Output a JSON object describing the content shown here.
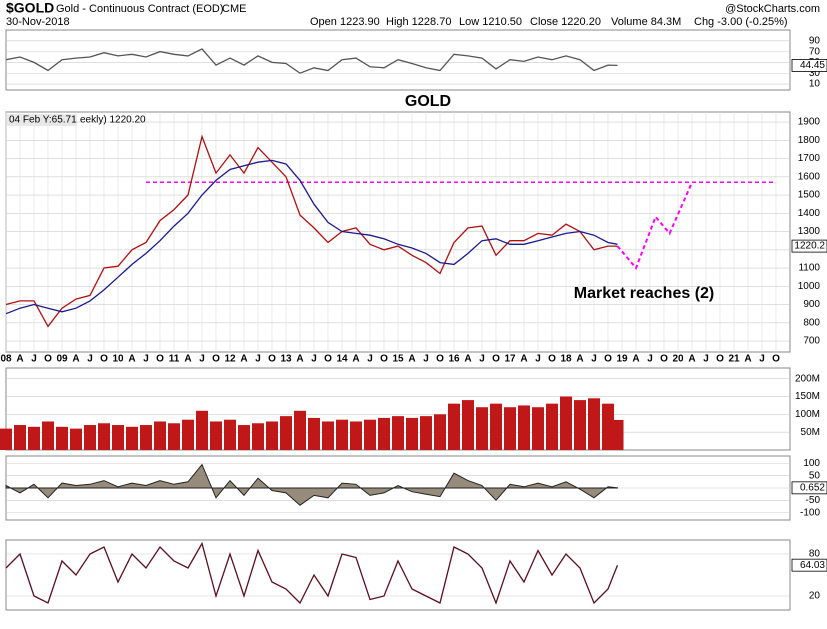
{
  "header": {
    "symbol": "$GOLD",
    "name": "Gold - Continuous Contract (EOD)",
    "exchange": "CME",
    "date": "30-Nov-2018",
    "open": "Open 1223.90",
    "high": "High 1228.70",
    "low": "Low 1210.50",
    "close": "Close 1220.20",
    "volume": "Volume 84.3M",
    "change": "Chg -3.00 (-0.25%)",
    "brand": "@StockCharts.com"
  },
  "chart_data": [
    {
      "type": "line",
      "ylim": [
        -1,
        110
      ],
      "yticks": [
        90,
        70,
        50,
        30,
        10
      ],
      "last_label": {
        "value": 44.45,
        "label": "44.45"
      },
      "x": [
        2008,
        2008.25,
        2008.5,
        2008.75,
        2009,
        2009.25,
        2009.5,
        2009.75,
        2010,
        2010.25,
        2010.5,
        2010.75,
        2011,
        2011.25,
        2011.5,
        2011.75,
        2012,
        2012.25,
        2012.5,
        2012.75,
        2013,
        2013.25,
        2013.5,
        2013.75,
        2014,
        2014.25,
        2014.5,
        2014.75,
        2015,
        2015.25,
        2015.5,
        2015.75,
        2016,
        2016.25,
        2016.5,
        2016.75,
        2017,
        2017.25,
        2017.5,
        2017.75,
        2018,
        2018.25,
        2018.5,
        2018.75,
        2018.92
      ],
      "series": [
        {
          "color": "#555555",
          "values": [
            55,
            60,
            50,
            35,
            55,
            58,
            60,
            68,
            62,
            65,
            60,
            70,
            65,
            62,
            75,
            45,
            58,
            45,
            62,
            50,
            48,
            30,
            40,
            35,
            55,
            58,
            42,
            40,
            55,
            48,
            40,
            35,
            65,
            62,
            58,
            38,
            55,
            52,
            60,
            55,
            62,
            55,
            35,
            45,
            44.45
          ]
        }
      ]
    },
    {
      "type": "line",
      "title": "GOLD",
      "annotation": "Market reaches (2)",
      "legend_text": [
        "04 Feb Y:65.71",
        "eekly) 1220.20"
      ],
      "ylim": [
        640,
        1955
      ],
      "yticks": [
        700,
        800,
        900,
        1000,
        1100,
        1200,
        1300,
        1400,
        1500,
        1600,
        1700,
        1800,
        1900
      ],
      "last_label": {
        "value": 1220.2,
        "label": "1220.2"
      },
      "grid": true,
      "reference_line": 1570,
      "reference_color": "#ff00ff",
      "projection": {
        "color": "#ff00ff",
        "x": [
          2018.92,
          2019.25,
          2019.6,
          2019.85,
          2020.25
        ],
        "values": [
          1220,
          1100,
          1380,
          1290,
          1570
        ]
      },
      "xlim": [
        2008,
        2022
      ],
      "xticks": [
        {
          "value": 2008,
          "label": "08"
        },
        {
          "value": 2008.25,
          "label": "A"
        },
        {
          "value": 2008.5,
          "label": "J"
        },
        {
          "value": 2008.75,
          "label": "O"
        },
        {
          "value": 2009,
          "label": "09"
        },
        {
          "value": 2009.25,
          "label": "A"
        },
        {
          "value": 2009.5,
          "label": "J"
        },
        {
          "value": 2009.75,
          "label": "O"
        },
        {
          "value": 2010,
          "label": "10"
        },
        {
          "value": 2010.25,
          "label": "A"
        },
        {
          "value": 2010.5,
          "label": "J"
        },
        {
          "value": 2010.75,
          "label": "O"
        },
        {
          "value": 2011,
          "label": "11"
        },
        {
          "value": 2011.25,
          "label": "A"
        },
        {
          "value": 2011.5,
          "label": "J"
        },
        {
          "value": 2011.75,
          "label": "O"
        },
        {
          "value": 2012,
          "label": "12"
        },
        {
          "value": 2012.25,
          "label": "A"
        },
        {
          "value": 2012.5,
          "label": "J"
        },
        {
          "value": 2012.75,
          "label": "O"
        },
        {
          "value": 2013,
          "label": "13"
        },
        {
          "value": 2013.25,
          "label": "A"
        },
        {
          "value": 2013.5,
          "label": "J"
        },
        {
          "value": 2013.75,
          "label": "O"
        },
        {
          "value": 2014,
          "label": "14"
        },
        {
          "value": 2014.25,
          "label": "A"
        },
        {
          "value": 2014.5,
          "label": "J"
        },
        {
          "value": 2014.75,
          "label": "O"
        },
        {
          "value": 2015,
          "label": "15"
        },
        {
          "value": 2015.25,
          "label": "A"
        },
        {
          "value": 2015.5,
          "label": "J"
        },
        {
          "value": 2015.75,
          "label": "O"
        },
        {
          "value": 2016,
          "label": "16"
        },
        {
          "value": 2016.25,
          "label": "A"
        },
        {
          "value": 2016.5,
          "label": "J"
        },
        {
          "value": 2016.75,
          "label": "O"
        },
        {
          "value": 2017,
          "label": "17"
        },
        {
          "value": 2017.25,
          "label": "A"
        },
        {
          "value": 2017.5,
          "label": "J"
        },
        {
          "value": 2017.75,
          "label": "O"
        },
        {
          "value": 2018,
          "label": "18"
        },
        {
          "value": 2018.25,
          "label": "A"
        },
        {
          "value": 2018.5,
          "label": "J"
        },
        {
          "value": 2018.75,
          "label": "O"
        },
        {
          "value": 2019,
          "label": "19"
        },
        {
          "value": 2019.25,
          "label": "A"
        },
        {
          "value": 2019.5,
          "label": "J"
        },
        {
          "value": 2019.75,
          "label": "O"
        },
        {
          "value": 2020,
          "label": "20"
        },
        {
          "value": 2020.25,
          "label": "A"
        },
        {
          "value": 2020.5,
          "label": "J"
        },
        {
          "value": 2020.75,
          "label": "O"
        },
        {
          "value": 2021,
          "label": "21"
        },
        {
          "value": 2021.25,
          "label": "A"
        },
        {
          "value": 2021.5,
          "label": "J"
        },
        {
          "value": 2021.75,
          "label": "O"
        }
      ],
      "x": [
        2008,
        2008.25,
        2008.5,
        2008.75,
        2009,
        2009.25,
        2009.5,
        2009.75,
        2010,
        2010.25,
        2010.5,
        2010.75,
        2011,
        2011.25,
        2011.5,
        2011.75,
        2012,
        2012.25,
        2012.5,
        2012.75,
        2013,
        2013.25,
        2013.5,
        2013.75,
        2014,
        2014.25,
        2014.5,
        2014.75,
        2015,
        2015.25,
        2015.5,
        2015.75,
        2016,
        2016.25,
        2016.5,
        2016.75,
        2017,
        2017.25,
        2017.5,
        2017.75,
        2018,
        2018.25,
        2018.5,
        2018.75,
        2018.92
      ],
      "series": [
        {
          "color": "#b01010",
          "values": [
            900,
            920,
            920,
            780,
            880,
            930,
            950,
            1100,
            1110,
            1200,
            1240,
            1360,
            1420,
            1500,
            1820,
            1620,
            1720,
            1620,
            1760,
            1680,
            1600,
            1390,
            1320,
            1240,
            1300,
            1320,
            1230,
            1200,
            1220,
            1170,
            1130,
            1070,
            1240,
            1320,
            1330,
            1170,
            1250,
            1250,
            1290,
            1280,
            1340,
            1300,
            1200,
            1220,
            1220.2
          ]
        },
        {
          "color": "#1a1a8c",
          "values": [
            850,
            880,
            900,
            880,
            860,
            880,
            920,
            980,
            1050,
            1120,
            1180,
            1250,
            1330,
            1400,
            1500,
            1580,
            1640,
            1660,
            1680,
            1690,
            1670,
            1580,
            1450,
            1350,
            1300,
            1290,
            1280,
            1260,
            1230,
            1210,
            1180,
            1130,
            1120,
            1180,
            1250,
            1260,
            1230,
            1230,
            1250,
            1270,
            1290,
            1300,
            1280,
            1240,
            1230
          ]
        }
      ]
    },
    {
      "type": "bar",
      "ylim": [
        0,
        230000000
      ],
      "yticks": [
        {
          "value": 200000000,
          "label": "200M"
        },
        {
          "value": 150000000,
          "label": "150M"
        },
        {
          "value": 100000000,
          "label": "100M"
        },
        {
          "value": 50000000,
          "label": "50M"
        }
      ],
      "color": "#c01818",
      "x": [
        2008,
        2008.25,
        2008.5,
        2008.75,
        2009,
        2009.25,
        2009.5,
        2009.75,
        2010,
        2010.25,
        2010.5,
        2010.75,
        2011,
        2011.25,
        2011.5,
        2011.75,
        2012,
        2012.25,
        2012.5,
        2012.75,
        2013,
        2013.25,
        2013.5,
        2013.75,
        2014,
        2014.25,
        2014.5,
        2014.75,
        2015,
        2015.25,
        2015.5,
        2015.75,
        2016,
        2016.25,
        2016.5,
        2016.75,
        2017,
        2017.25,
        2017.5,
        2017.75,
        2018,
        2018.25,
        2018.5,
        2018.75,
        2018.92
      ],
      "values": [
        60000000,
        70000000,
        65000000,
        80000000,
        65000000,
        60000000,
        70000000,
        75000000,
        70000000,
        65000000,
        70000000,
        80000000,
        75000000,
        85000000,
        110000000,
        80000000,
        85000000,
        70000000,
        75000000,
        80000000,
        95000000,
        110000000,
        90000000,
        80000000,
        85000000,
        80000000,
        85000000,
        90000000,
        95000000,
        90000000,
        95000000,
        100000000,
        130000000,
        140000000,
        120000000,
        130000000,
        120000000,
        125000000,
        120000000,
        130000000,
        150000000,
        140000000,
        145000000,
        130000000,
        84300000
      ]
    },
    {
      "type": "area",
      "ylim": [
        -130,
        130
      ],
      "yticks": [
        100,
        50,
        0,
        -50,
        -100
      ],
      "color": "#6b5a45",
      "last_label": {
        "value": 0.652,
        "label": "0.652"
      },
      "x": [
        2008,
        2008.25,
        2008.5,
        2008.75,
        2009,
        2009.25,
        2009.5,
        2009.75,
        2010,
        2010.25,
        2010.5,
        2010.75,
        2011,
        2011.25,
        2011.5,
        2011.75,
        2012,
        2012.25,
        2012.5,
        2012.75,
        2013,
        2013.25,
        2013.5,
        2013.75,
        2014,
        2014.25,
        2014.5,
        2014.75,
        2015,
        2015.25,
        2015.5,
        2015.75,
        2016,
        2016.25,
        2016.5,
        2016.75,
        2017,
        2017.25,
        2017.5,
        2017.75,
        2018,
        2018.25,
        2018.5,
        2018.75,
        2018.92
      ],
      "values": [
        10,
        -20,
        15,
        -40,
        20,
        10,
        15,
        30,
        5,
        20,
        10,
        30,
        15,
        25,
        95,
        -40,
        30,
        -30,
        40,
        -10,
        -20,
        -70,
        -30,
        -40,
        20,
        15,
        -30,
        -20,
        10,
        -15,
        -25,
        -35,
        60,
        30,
        10,
        -50,
        15,
        5,
        20,
        5,
        25,
        -5,
        -40,
        5,
        0.652
      ]
    },
    {
      "type": "line",
      "ylim": [
        0,
        100
      ],
      "yticks": [
        80,
        20
      ],
      "last_label": {
        "value": 64.03,
        "label": "64.03"
      },
      "x": [
        2008,
        2008.25,
        2008.5,
        2008.75,
        2009,
        2009.25,
        2009.5,
        2009.75,
        2010,
        2010.25,
        2010.5,
        2010.75,
        2011,
        2011.25,
        2011.5,
        2011.75,
        2012,
        2012.25,
        2012.5,
        2012.75,
        2013,
        2013.25,
        2013.5,
        2013.75,
        2014,
        2014.25,
        2014.5,
        2014.75,
        2015,
        2015.25,
        2015.5,
        2015.75,
        2016,
        2016.25,
        2016.5,
        2016.75,
        2017,
        2017.25,
        2017.5,
        2017.75,
        2018,
        2018.25,
        2018.5,
        2018.75,
        2018.92
      ],
      "series": [
        {
          "color": "#5a0f20",
          "values": [
            60,
            80,
            20,
            10,
            70,
            50,
            80,
            90,
            40,
            80,
            60,
            90,
            70,
            60,
            95,
            20,
            80,
            20,
            85,
            40,
            30,
            10,
            50,
            20,
            80,
            75,
            15,
            20,
            70,
            30,
            20,
            10,
            90,
            80,
            60,
            10,
            70,
            40,
            85,
            50,
            80,
            60,
            10,
            30,
            64.03
          ]
        }
      ]
    }
  ]
}
